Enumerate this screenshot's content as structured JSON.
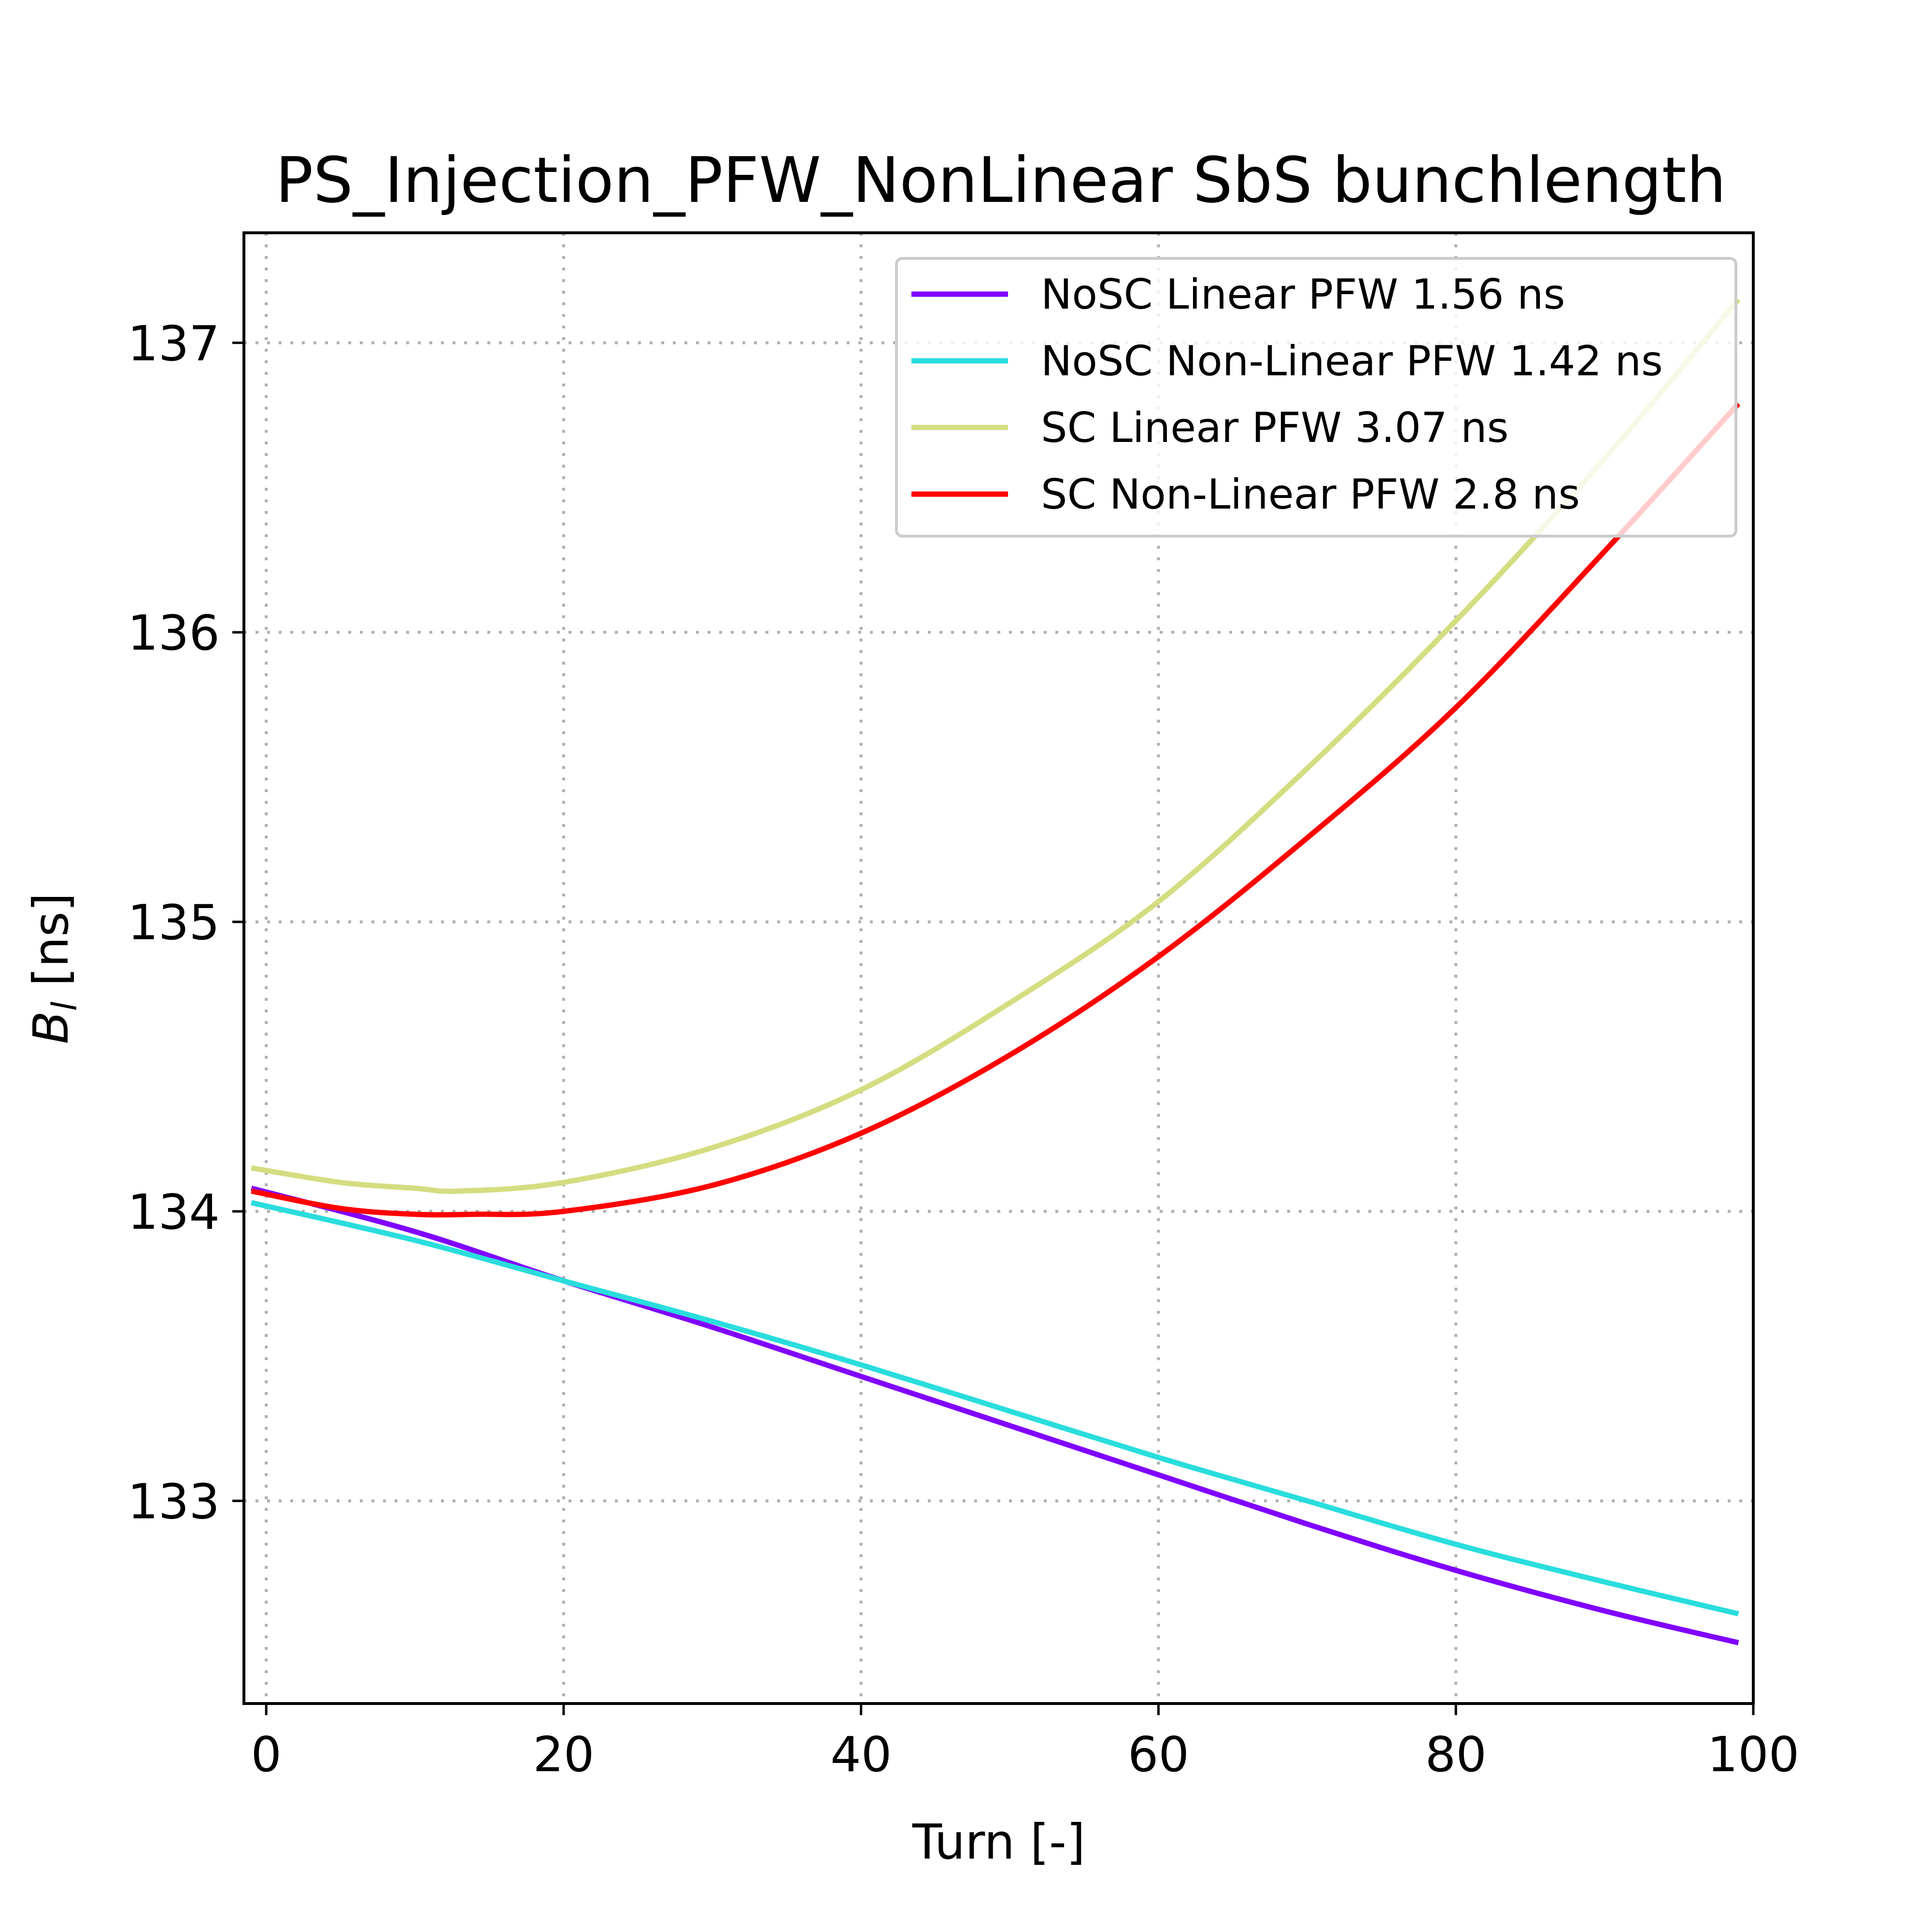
{
  "chart_data": {
    "type": "line",
    "title": "PS_Injection_PFW_NonLinear SbS bunchlength",
    "xlabel": "Turn [-]",
    "ylabel_main": "B",
    "ylabel_sub": "l",
    "ylabel_rest": " [ns]",
    "xlim": [
      -1.5,
      100
    ],
    "ylim": [
      132.3,
      137.38
    ],
    "xticks": [
      0,
      20,
      40,
      60,
      80,
      100
    ],
    "yticks": [
      133,
      134,
      135,
      136,
      137
    ],
    "grid": true,
    "legend_position": "upper right",
    "series": [
      {
        "name": "NoSC Linear PFW 1.56 ns",
        "color": "#8000ff",
        "x": [
          -1,
          10,
          20,
          30,
          40,
          50,
          60,
          70,
          80,
          90,
          99
        ],
        "y": [
          134.08,
          133.93,
          133.76,
          133.6,
          133.43,
          133.26,
          133.09,
          132.92,
          132.76,
          132.62,
          132.51
        ]
      },
      {
        "name": "NoSC Non-Linear PFW 1.42 ns",
        "color": "#2adddd",
        "x": [
          -1,
          10,
          20,
          30,
          40,
          50,
          60,
          70,
          80,
          90,
          99
        ],
        "y": [
          134.03,
          133.9,
          133.76,
          133.62,
          133.47,
          133.31,
          133.15,
          133.0,
          132.85,
          132.72,
          132.61
        ]
      },
      {
        "name": "SC Linear PFW 3.07 ns",
        "color": "#d4dd80",
        "x": [
          -1,
          5,
          10,
          13,
          20,
          30,
          40,
          50,
          60,
          70,
          80,
          90,
          99
        ],
        "y": [
          134.15,
          134.1,
          134.08,
          134.07,
          134.1,
          134.22,
          134.42,
          134.72,
          135.07,
          135.53,
          136.04,
          136.6,
          137.15
        ]
      },
      {
        "name": "SC Non-Linear PFW 2.8 ns",
        "color": "#ff0000",
        "x": [
          -1,
          5,
          10,
          14,
          20,
          30,
          40,
          50,
          60,
          70,
          80,
          90,
          99
        ],
        "y": [
          134.07,
          134.01,
          133.99,
          133.99,
          134.0,
          134.09,
          134.27,
          134.54,
          134.88,
          135.29,
          135.74,
          136.28,
          136.79
        ]
      }
    ]
  }
}
